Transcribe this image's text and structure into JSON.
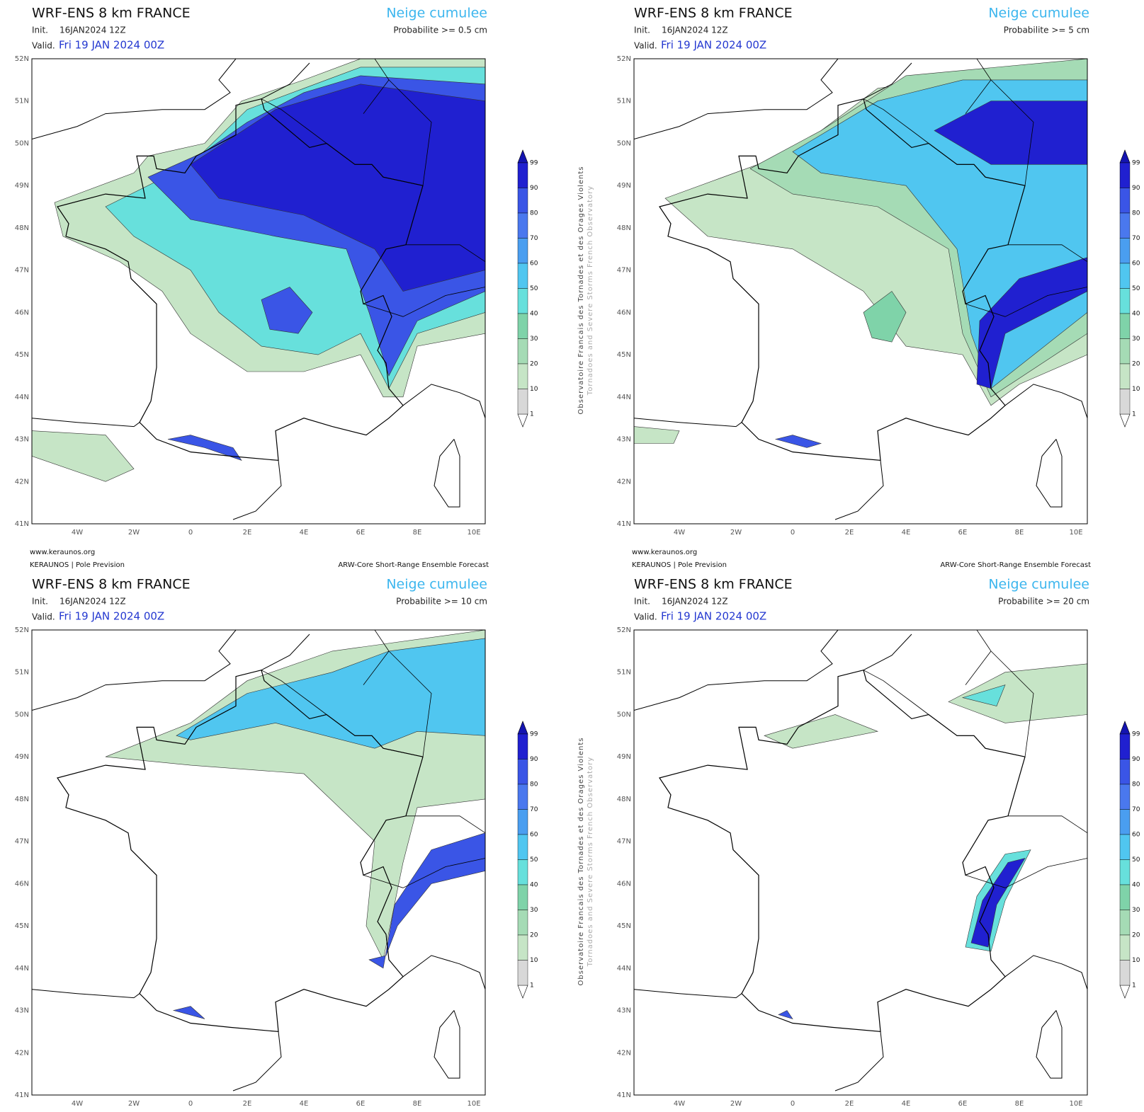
{
  "side_text": [
    "Observatoire Francais des Tornades et des Orages Violents",
    "Tornadoes and Severe Storms French Observatory"
  ],
  "lat_labels": [
    "52N",
    "51N",
    "50N",
    "49N",
    "48N",
    "47N",
    "46N",
    "45N",
    "44N",
    "43N",
    "42N",
    "41N"
  ],
  "lon_labels": [
    "4W",
    "2W",
    "0",
    "2E",
    "4E",
    "6E",
    "8E",
    "10E"
  ],
  "colorbar": {
    "ticks": [
      1,
      10,
      20,
      30,
      40,
      50,
      60,
      70,
      80,
      90,
      99
    ]
  },
  "panels": [
    {
      "title": "WRF-ENS 8 km FRANCE",
      "init_label": "Init.",
      "init": "16JAN2024 12Z",
      "valid_label": "Valid.",
      "valid": "Fri 19 JAN 2024 00Z",
      "field": "Neige cumulee",
      "threshold": "Probabilite >= 0.5 cm",
      "site": "www.keraunos.org",
      "org": "KERAUNOS | Pole Prevision",
      "model": "ARW-Core Short-Range Ensemble Forecast"
    },
    {
      "title": "WRF-ENS 8 km FRANCE",
      "init_label": "Init.",
      "init": "16JAN2024 12Z",
      "valid_label": "Valid.",
      "valid": "Fri 19 JAN 2024 00Z",
      "field": "Neige cumulee",
      "threshold": "Probabilite >= 5 cm",
      "site": "www.keraunos.org",
      "org": "KERAUNOS | Pole Prevision",
      "model": "ARW-Core Short-Range Ensemble Forecast"
    },
    {
      "title": "WRF-ENS 8 km FRANCE",
      "init_label": "Init.",
      "init": "16JAN2024 12Z",
      "valid_label": "Valid.",
      "valid": "Fri 19 JAN 2024 00Z",
      "field": "Neige cumulee",
      "threshold": "Probabilite >= 10 cm"
    },
    {
      "title": "WRF-ENS 8 km FRANCE",
      "init_label": "Init.",
      "init": "16JAN2024 12Z",
      "valid_label": "Valid.",
      "valid": "Fri 19 JAN 2024 00Z",
      "field": "Neige cumulee",
      "threshold": "Probabilite >= 20 cm"
    }
  ]
}
